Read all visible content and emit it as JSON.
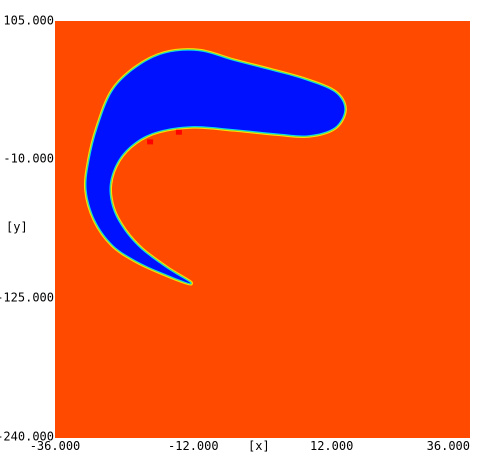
{
  "chart_data": {
    "type": "heatmap",
    "title": "",
    "xlabel": "[x]",
    "ylabel": "[y]",
    "xlim": [
      -36.0,
      36.0
    ],
    "ylim": [
      -240.0,
      105.0
    ],
    "x_ticks": [
      {
        "value": -36.0,
        "label": "-36.000"
      },
      {
        "value": -12.0,
        "label": "-12.000"
      },
      {
        "value": 12.0,
        "label": "12.000"
      },
      {
        "value": 36.0,
        "label": "36.000"
      }
    ],
    "y_ticks": [
      {
        "value": 105.0,
        "label": "105.000"
      },
      {
        "value": -10.0,
        "label": "-10.000"
      },
      {
        "value": -125.0,
        "label": "-125.000"
      },
      {
        "value": -240.0,
        "label": "-240.000"
      }
    ],
    "grid": false,
    "colors": {
      "background_field": "#ff4a00",
      "region_main": "#0011ff",
      "edge_cyan": "#00e0ff",
      "edge_green": "#5ed85e",
      "edge_yellow": "#ffe000",
      "spot_red": "#ff0000"
    },
    "region_outline": [
      [
        -5.0,
        72.0
      ],
      [
        1.5,
        64.0
      ],
      [
        7.5,
        56.0
      ],
      [
        12.5,
        46.0
      ],
      [
        14.2,
        32.0
      ],
      [
        12.5,
        17.0
      ],
      [
        8.0,
        10.5
      ],
      [
        2.5,
        12.0
      ],
      [
        -5.0,
        15.5
      ],
      [
        -12.0,
        18.0
      ],
      [
        -18.0,
        14.0
      ],
      [
        -22.0,
        5.0
      ],
      [
        -25.0,
        -10.0
      ],
      [
        -26.5,
        -30.0
      ],
      [
        -26.0,
        -50.0
      ],
      [
        -24.0,
        -68.0
      ],
      [
        -21.0,
        -84.0
      ],
      [
        -16.5,
        -100.0
      ],
      [
        -12.5,
        -112.0
      ],
      [
        -17.5,
        -103.0
      ],
      [
        -22.0,
        -93.0
      ],
      [
        -26.0,
        -80.0
      ],
      [
        -29.0,
        -60.0
      ],
      [
        -30.5,
        -35.0
      ],
      [
        -30.0,
        -10.0
      ],
      [
        -28.5,
        18.0
      ],
      [
        -26.0,
        47.0
      ],
      [
        -22.0,
        66.0
      ],
      [
        -17.0,
        78.0
      ],
      [
        -11.0,
        80.0
      ]
    ],
    "spots": [
      {
        "x": -19.5,
        "y": 5.0
      },
      {
        "x": -14.5,
        "y": 13.0
      }
    ]
  }
}
